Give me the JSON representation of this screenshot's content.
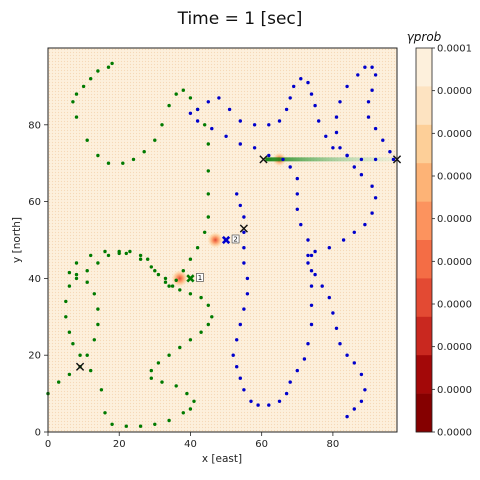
{
  "title": "Time = 1 [sec]",
  "colors": {
    "green_path": "#007a00",
    "blue_path": "#0000cc",
    "marker_dark": "#111111",
    "background_field": "#fdf0dc"
  },
  "chart_data": {
    "type": "scatter",
    "title": "Time = 1 [sec]",
    "xlabel": "x [east]",
    "ylabel": "y [north]",
    "xlim": [
      0,
      98
    ],
    "ylim": [
      0,
      100
    ],
    "x_ticks": [
      "0",
      "20",
      "40",
      "60",
      "80"
    ],
    "y_ticks": [
      "0",
      "20",
      "40",
      "60",
      "80"
    ],
    "x_tick_values": [
      0,
      20,
      40,
      60,
      80
    ],
    "y_tick_values": [
      0,
      20,
      40,
      60,
      80
    ],
    "grid": false,
    "series": [
      {
        "color": "#007a00",
        "points": [
          [
            0,
            10
          ],
          [
            3,
            13
          ],
          [
            6,
            15
          ],
          [
            9,
            17
          ],
          [
            11,
            20
          ],
          [
            13,
            24
          ],
          [
            14,
            28
          ],
          [
            14,
            32
          ],
          [
            13,
            36
          ],
          [
            11,
            39
          ],
          [
            8,
            40
          ],
          [
            6,
            38
          ],
          [
            5,
            34
          ],
          [
            5,
            30
          ],
          [
            6,
            26
          ],
          [
            7,
            23
          ],
          [
            9,
            20
          ],
          [
            12,
            16
          ],
          [
            15,
            11
          ],
          [
            16,
            5
          ],
          [
            18,
            2
          ],
          [
            22,
            1.5
          ],
          [
            26,
            1.5
          ],
          [
            30,
            2
          ],
          [
            34,
            3
          ],
          [
            38,
            5
          ],
          [
            40,
            6
          ],
          [
            41,
            8
          ],
          [
            39,
            10
          ],
          [
            36,
            12
          ],
          [
            32,
            13
          ],
          [
            29,
            14
          ],
          [
            29,
            16
          ],
          [
            31,
            18
          ],
          [
            34,
            20
          ],
          [
            37,
            22
          ],
          [
            40,
            24
          ],
          [
            43,
            26
          ],
          [
            45,
            28
          ],
          [
            46,
            30
          ],
          [
            45,
            33
          ],
          [
            43,
            35
          ],
          [
            40,
            36
          ],
          [
            37,
            37
          ],
          [
            35,
            38
          ],
          [
            33,
            40
          ],
          [
            30,
            42
          ],
          [
            28,
            45
          ],
          [
            26,
            46
          ],
          [
            23,
            47
          ],
          [
            20,
            46.5
          ],
          [
            17,
            46
          ],
          [
            14,
            44
          ],
          [
            11,
            42
          ],
          [
            8,
            41
          ],
          [
            6,
            41.5
          ],
          [
            8,
            44
          ],
          [
            12,
            46
          ],
          [
            16,
            47
          ],
          [
            20,
            47
          ],
          [
            22,
            46.5
          ],
          [
            26,
            45
          ],
          [
            29,
            43
          ],
          [
            31,
            41
          ],
          [
            33,
            39
          ],
          [
            34,
            38
          ],
          [
            36,
            39.5
          ],
          [
            38,
            42
          ],
          [
            40,
            45
          ],
          [
            42,
            48
          ],
          [
            44,
            52
          ],
          [
            45,
            56
          ],
          [
            45,
            62
          ],
          [
            45,
            68
          ],
          [
            45,
            75
          ],
          [
            44,
            80
          ],
          [
            42,
            84
          ],
          [
            40,
            87
          ],
          [
            38,
            89
          ],
          [
            36,
            88
          ],
          [
            34,
            85
          ],
          [
            32,
            80
          ],
          [
            30,
            76
          ],
          [
            27,
            73
          ],
          [
            24,
            71
          ],
          [
            21,
            70
          ],
          [
            17,
            70
          ],
          [
            14,
            72
          ],
          [
            11,
            76
          ],
          [
            8,
            82
          ],
          [
            7,
            86
          ],
          [
            8,
            88
          ],
          [
            10,
            90
          ],
          [
            12,
            92
          ],
          [
            14,
            94
          ],
          [
            17,
            95
          ],
          [
            18,
            96
          ]
        ]
      },
      {
        "color": "#0000cc",
        "points": [
          [
            84,
            4
          ],
          [
            86,
            6
          ],
          [
            88,
            8
          ],
          [
            89,
            11
          ],
          [
            88,
            15
          ],
          [
            86,
            18
          ],
          [
            84,
            20
          ],
          [
            82,
            23
          ],
          [
            81,
            27
          ],
          [
            80,
            31
          ],
          [
            79,
            35
          ],
          [
            77,
            38
          ],
          [
            75,
            41
          ],
          [
            73,
            44
          ],
          [
            73,
            46
          ],
          [
            75,
            47
          ],
          [
            79,
            48
          ],
          [
            83,
            50
          ],
          [
            86,
            52
          ],
          [
            89,
            54
          ],
          [
            91,
            57
          ],
          [
            92,
            61
          ],
          [
            91,
            64
          ],
          [
            88,
            67
          ],
          [
            86,
            69
          ],
          [
            84,
            72
          ],
          [
            82,
            74
          ],
          [
            81,
            78
          ],
          [
            81,
            82
          ],
          [
            82,
            86
          ],
          [
            84,
            90
          ],
          [
            87,
            93
          ],
          [
            89,
            95
          ],
          [
            91,
            95
          ],
          [
            92,
            93
          ],
          [
            91,
            89
          ],
          [
            90,
            86
          ],
          [
            90,
            82
          ],
          [
            92,
            79
          ],
          [
            94,
            76
          ],
          [
            96,
            73
          ],
          [
            97,
            71
          ],
          [
            92,
            71
          ],
          [
            88,
            71
          ],
          [
            84,
            72
          ],
          [
            80,
            74
          ],
          [
            78,
            77
          ],
          [
            76,
            81
          ],
          [
            75,
            85
          ],
          [
            74,
            88
          ],
          [
            73,
            91
          ],
          [
            71,
            92
          ],
          [
            69,
            90
          ],
          [
            68,
            87
          ],
          [
            67,
            84
          ],
          [
            65,
            81
          ],
          [
            62,
            80
          ],
          [
            58,
            80
          ],
          [
            54,
            81
          ],
          [
            51,
            84
          ],
          [
            48,
            87
          ],
          [
            45,
            86
          ],
          [
            42,
            84
          ],
          [
            40,
            83
          ],
          [
            42,
            81
          ],
          [
            46,
            79
          ],
          [
            50,
            77
          ],
          [
            54,
            75
          ],
          [
            58,
            74
          ],
          [
            62,
            72
          ],
          [
            66,
            71
          ],
          [
            68,
            69
          ],
          [
            70,
            66
          ],
          [
            70,
            62
          ],
          [
            70,
            58
          ],
          [
            71,
            54
          ],
          [
            73,
            50
          ],
          [
            74,
            46
          ],
          [
            74,
            42
          ],
          [
            74,
            38
          ],
          [
            74,
            33
          ],
          [
            74,
            28
          ],
          [
            73,
            23
          ],
          [
            72,
            19
          ],
          [
            70,
            16
          ],
          [
            68,
            13
          ],
          [
            67,
            10
          ],
          [
            65,
            8
          ],
          [
            62,
            7
          ],
          [
            59,
            7
          ],
          [
            57,
            8
          ],
          [
            55,
            11
          ],
          [
            54,
            14
          ],
          [
            53,
            17
          ],
          [
            52,
            20
          ],
          [
            53,
            24
          ],
          [
            54,
            28
          ],
          [
            55,
            32
          ],
          [
            56,
            36
          ],
          [
            56,
            40
          ],
          [
            55,
            44
          ],
          [
            55,
            48
          ],
          [
            55,
            52
          ],
          [
            55,
            56
          ],
          [
            54,
            59
          ],
          [
            53,
            62
          ]
        ]
      }
    ],
    "markers": [
      {
        "symbol": "x",
        "color": "#111111",
        "x": 9,
        "y": 17,
        "label": ""
      },
      {
        "symbol": "x",
        "color": "#111111",
        "x": 55,
        "y": 53,
        "label": ""
      },
      {
        "symbol": "x",
        "color": "#111111",
        "x": 60.5,
        "y": 71,
        "label": ""
      },
      {
        "symbol": "x",
        "color": "#111111",
        "x": 98,
        "y": 71,
        "label": ""
      },
      {
        "symbol": "X",
        "color": "#007a00",
        "x": 40,
        "y": 40,
        "label": "1"
      },
      {
        "symbol": "X",
        "color": "#0000cc",
        "x": 50,
        "y": 50,
        "label": "2"
      }
    ],
    "prob_blobs": [
      {
        "x": 37,
        "y": 40,
        "strength": 1.0
      },
      {
        "x": 47,
        "y": 50,
        "strength": 0.9
      },
      {
        "x": 65,
        "y": 71,
        "strength": 0.6
      }
    ],
    "colorbar": {
      "title": "γ_prob",
      "title_display": "γprob",
      "labels": [
        "0.0001",
        "0.0000",
        "0.0000",
        "0.0000",
        "0.0000",
        "0.0000",
        "0.0000",
        "0.0000",
        "0.0000",
        "0.0000"
      ],
      "bands": [
        "#fdf0dc",
        "#fde3c1",
        "#fdcf98",
        "#fdb376",
        "#fc935e",
        "#f46d45",
        "#e34a33",
        "#c9281f",
        "#a30808",
        "#850000"
      ]
    }
  }
}
